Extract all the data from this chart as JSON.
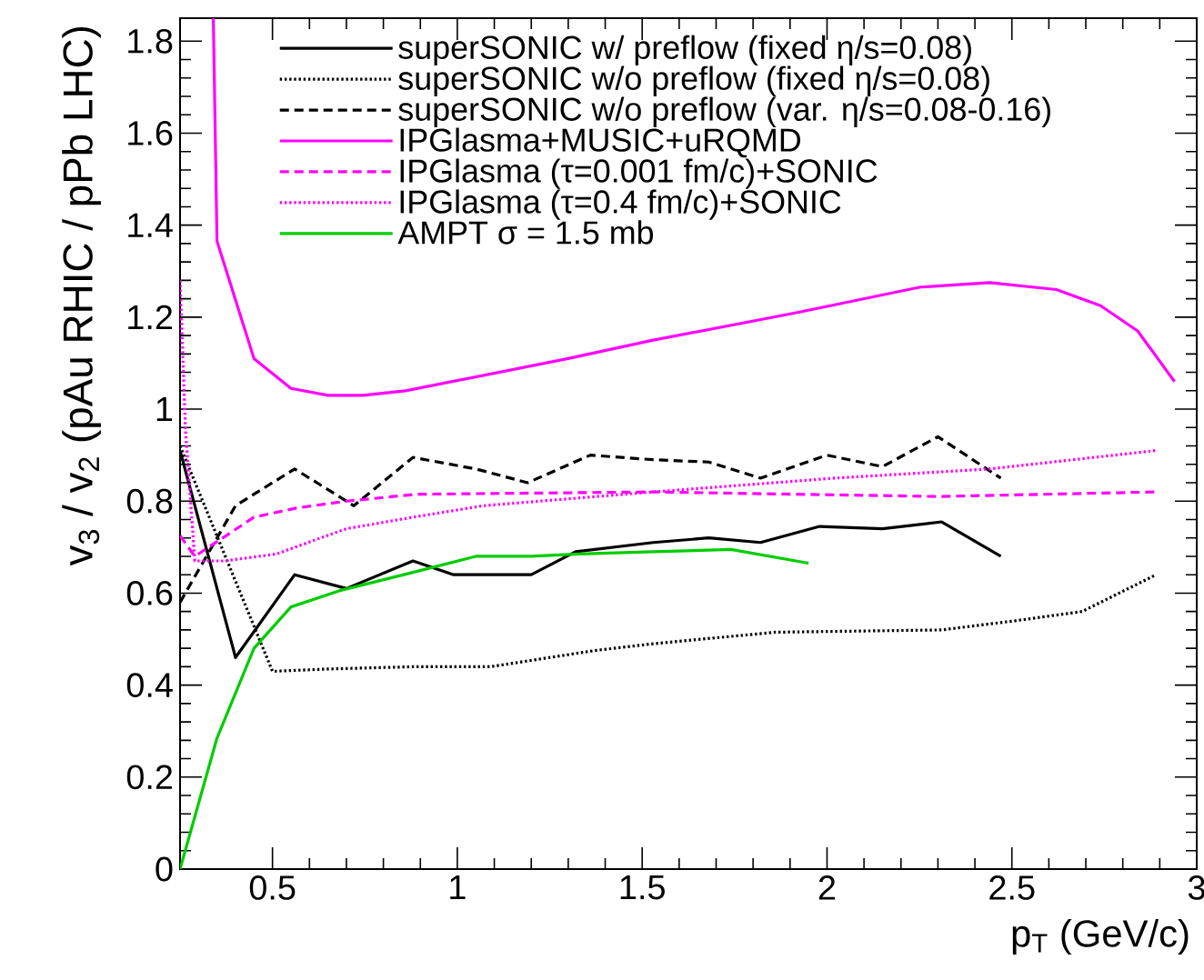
{
  "chart_data": {
    "type": "line",
    "xlabel": "p$_{T}$ (GeV/c)",
    "ylabel": "v$_{3}$ / v$_{2}$ (pAu RHIC / pPb LHC)",
    "xlim": [
      0.25,
      3
    ],
    "ylim": [
      0,
      1.85
    ],
    "xticks": [
      0.5,
      1,
      1.5,
      2,
      2.5,
      3
    ],
    "yticks": [
      0,
      0.2,
      0.4,
      0.6,
      0.8,
      1,
      1.2,
      1.4,
      1.6,
      1.8
    ],
    "legend": "top right",
    "series": [
      {
        "name": "superSONIC w/ preflow (fixed η/s=0.08)",
        "color": "#000000",
        "line_style": "solid",
        "x": [
          0.25,
          0.4,
          0.56,
          0.7,
          0.88,
          0.99,
          1.2,
          1.32,
          1.53,
          1.68,
          1.82,
          1.98,
          2.15,
          2.31,
          2.47
        ],
        "values": [
          0.91,
          0.46,
          0.64,
          0.61,
          0.67,
          0.64,
          0.64,
          0.69,
          0.71,
          0.72,
          0.71,
          0.745,
          0.74,
          0.755,
          0.68
        ]
      },
      {
        "name": "superSONIC w/o preflow (fixed η/s=0.08)",
        "color": "#000000",
        "line_style": "dotted",
        "x": [
          0.25,
          0.5,
          0.65,
          0.88,
          1.09,
          1.17,
          1.37,
          1.53,
          1.86,
          2.31,
          2.51,
          2.69,
          2.89
        ],
        "values": [
          0.92,
          0.43,
          0.435,
          0.44,
          0.44,
          0.45,
          0.475,
          0.49,
          0.515,
          0.52,
          0.54,
          0.56,
          0.64
        ]
      },
      {
        "name": "superSONIC w/o preflow (var. η/s=0.08-0.16)",
        "color": "#000000",
        "line_style": "dashed",
        "x": [
          0.25,
          0.4,
          0.56,
          0.72,
          0.88,
          1.05,
          1.19,
          1.36,
          1.53,
          1.68,
          1.82,
          2.0,
          2.15,
          2.3,
          2.47
        ],
        "values": [
          0.58,
          0.79,
          0.87,
          0.79,
          0.895,
          0.87,
          0.84,
          0.9,
          0.89,
          0.885,
          0.85,
          0.9,
          0.875,
          0.94,
          0.85
        ]
      },
      {
        "name": "IPGlasma+MUSIC+uRQMD",
        "color": "#ff00ff",
        "line_style": "solid",
        "x": [
          0.34,
          0.35,
          0.45,
          0.55,
          0.65,
          0.745,
          0.86,
          1.3,
          1.53,
          1.92,
          2.25,
          2.44,
          2.62,
          2.74,
          2.84,
          2.94
        ],
        "values": [
          1.85,
          1.365,
          1.11,
          1.045,
          1.03,
          1.03,
          1.04,
          1.11,
          1.15,
          1.21,
          1.265,
          1.275,
          1.26,
          1.225,
          1.17,
          1.06
        ]
      },
      {
        "name": "IPGlasma (τ=0.001 fm/c)+SONIC",
        "color": "#ff00ff",
        "line_style": "dashed",
        "x": [
          0.25,
          0.29,
          0.45,
          0.565,
          0.7,
          0.89,
          1.53,
          2.3,
          2.89
        ],
        "values": [
          0.725,
          0.68,
          0.765,
          0.785,
          0.8,
          0.815,
          0.82,
          0.81,
          0.82
        ]
      },
      {
        "name": "IPGlasma (τ=0.4 fm/c)+SONIC",
        "color": "#ff00ff",
        "line_style": "dotted",
        "x": [
          0.25,
          0.265,
          0.29,
          0.37,
          0.51,
          0.7,
          0.88,
          1.07,
          1.3,
          1.53,
          2.02,
          2.44,
          2.89
        ],
        "values": [
          1.28,
          0.95,
          0.67,
          0.67,
          0.685,
          0.74,
          0.765,
          0.79,
          0.805,
          0.82,
          0.85,
          0.87,
          0.91
        ]
      },
      {
        "name": "AMPT σ = 1.5 mb",
        "color": "#00cc00",
        "line_style": "solid",
        "x": [
          0.25,
          0.35,
          0.45,
          0.55,
          0.68,
          0.88,
          1.05,
          1.2,
          1.33,
          1.53,
          1.74,
          1.95
        ],
        "values": [
          0,
          0.285,
          0.48,
          0.57,
          0.605,
          0.645,
          0.68,
          0.68,
          0.685,
          0.69,
          0.695,
          0.665
        ]
      }
    ]
  }
}
